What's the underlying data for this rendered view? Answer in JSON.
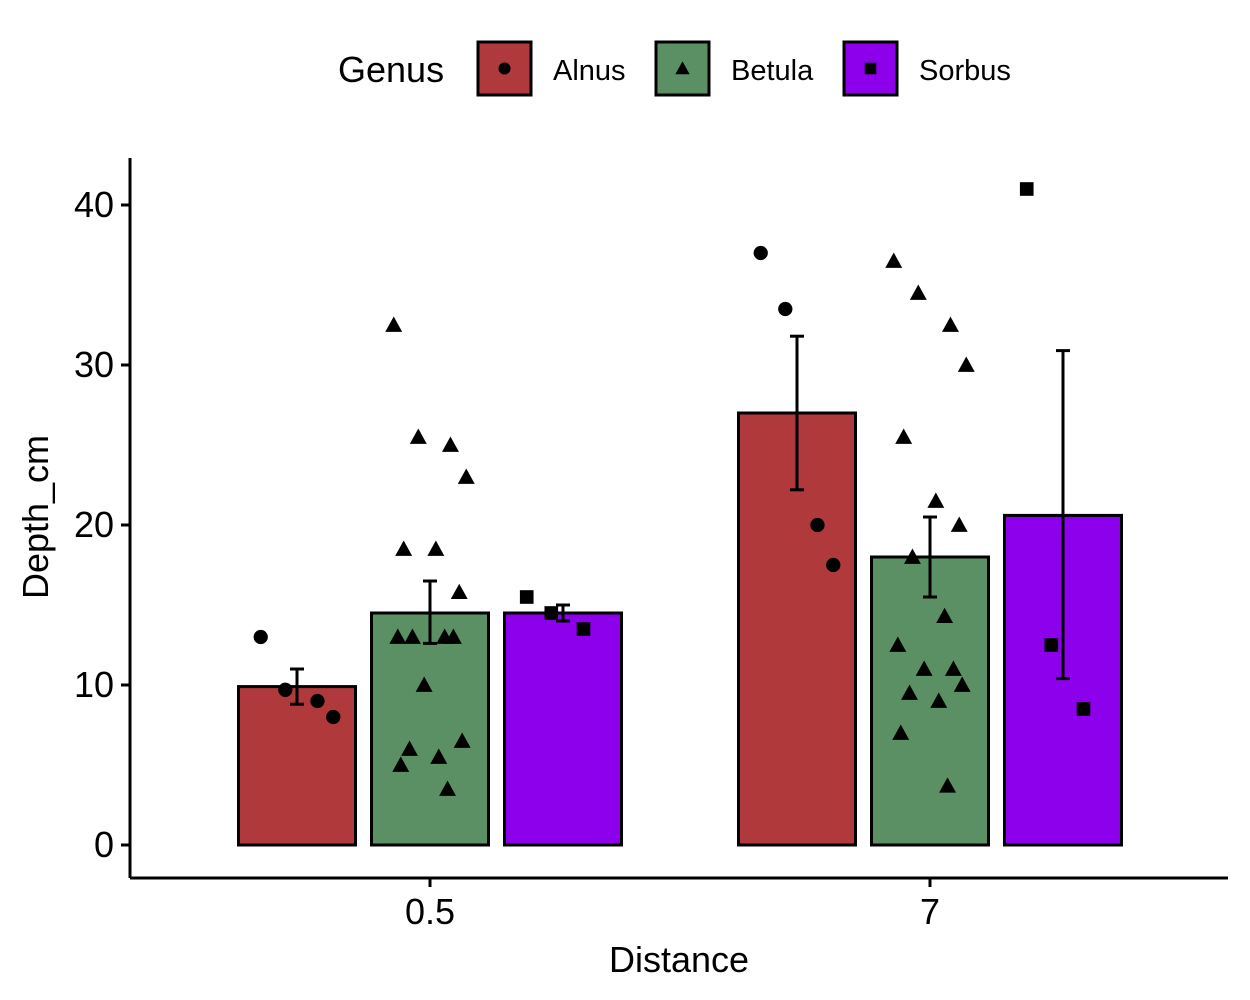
{
  "chart_data": {
    "type": "bar",
    "xlabel": "Distance",
    "ylabel": "Depth_cm",
    "ylim": [
      -2,
      43
    ],
    "yticks": [
      0,
      10,
      20,
      30,
      40
    ],
    "categories": [
      "0.5",
      "7"
    ],
    "legend": {
      "title": "Genus",
      "position": "top"
    },
    "series": [
      {
        "name": "Alnus",
        "color": "#b0393b",
        "shape": "circle",
        "values": [
          9.9,
          27.0
        ],
        "error": [
          [
            8.8,
            11.0
          ],
          [
            22.2,
            31.8
          ]
        ],
        "points": [
          [
            13.0,
            9.7,
            9.0,
            8.0
          ],
          [
            37.0,
            33.5,
            20.0,
            17.5
          ]
        ]
      },
      {
        "name": "Betula",
        "color": "#5b8f64",
        "shape": "triangle",
        "values": [
          14.5,
          18.0
        ],
        "error": [
          [
            12.6,
            16.5
          ],
          [
            15.5,
            20.5
          ]
        ],
        "points": [
          [
            32.5,
            25.5,
            25.0,
            23.0,
            18.5,
            18.5,
            15.8,
            13.0,
            13.0,
            13.0,
            13.0,
            10.0,
            6.5,
            6.0,
            5.5,
            5.0,
            3.5
          ],
          [
            36.5,
            34.5,
            32.5,
            30.0,
            25.5,
            21.5,
            20.0,
            18.0,
            14.3,
            12.5,
            11.0,
            11.0,
            10.0,
            9.5,
            9.0,
            7.0,
            3.7
          ]
        ]
      },
      {
        "name": "Sorbus",
        "color": "#8c00ec",
        "shape": "square",
        "values": [
          14.5,
          20.6
        ],
        "error": [
          [
            14.0,
            15.0
          ],
          [
            10.4,
            30.9
          ]
        ],
        "points": [
          [
            15.5,
            14.5,
            13.5
          ],
          [
            41.0,
            12.5,
            8.5
          ]
        ]
      }
    ]
  }
}
